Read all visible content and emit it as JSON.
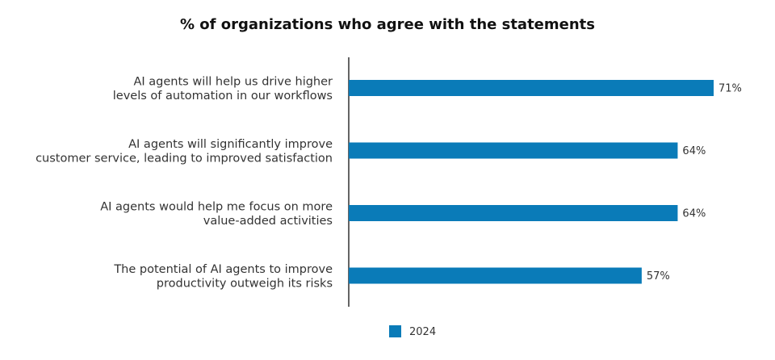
{
  "chart_data": {
    "type": "bar",
    "orientation": "horizontal",
    "title": "% of organizations who agree with the statements",
    "xlabel": "",
    "ylabel": "",
    "xlim": [
      0,
      71
    ],
    "grid": false,
    "legend_position": "bottom",
    "value_suffix": "%",
    "categories": [
      [
        "AI agents will help us drive higher",
        "levels of automation in our workflows"
      ],
      [
        "AI agents will significantly improve",
        "customer service, leading to improved satisfaction"
      ],
      [
        "AI agents would help me focus on more",
        "value-added activities"
      ],
      [
        "The potential of AI agents to improve",
        "productivity outweigh its risks"
      ]
    ],
    "series": [
      {
        "name": "2024",
        "color": "#0a7bb8",
        "values": [
          71,
          64,
          64,
          57
        ]
      }
    ]
  }
}
